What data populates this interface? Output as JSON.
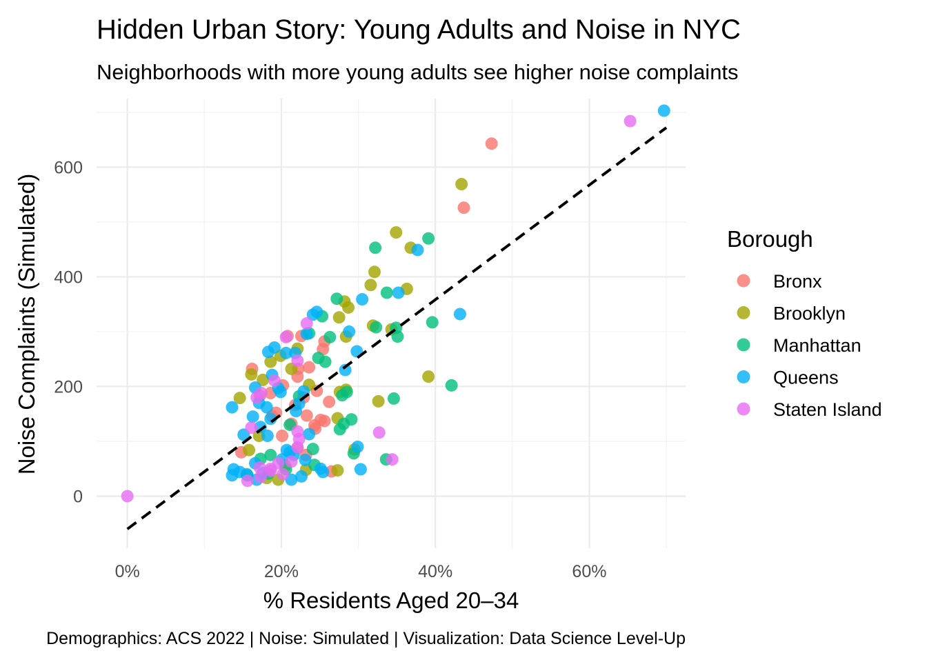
{
  "chart_data": {
    "type": "scatter",
    "title": "Hidden Urban Story: Young Adults and Noise in NYC",
    "subtitle": "Neighborhoods with more young adults see higher noise complaints",
    "xlabel": "% Residents Aged 20–34",
    "ylabel": "Noise Complaints (Simulated)",
    "caption": "Demographics: ACS 2022 | Noise: Simulated | Visualization: Data Science Level-Up",
    "xlim": [
      -0.04,
      0.725
    ],
    "ylim": [
      -95,
      725
    ],
    "x_ticks": [
      {
        "value": 0,
        "label": "0%"
      },
      {
        "value": 0.2,
        "label": "20%"
      },
      {
        "value": 0.4,
        "label": "40%"
      },
      {
        "value": 0.6,
        "label": "60%"
      }
    ],
    "y_ticks": [
      {
        "value": 0,
        "label": "0"
      },
      {
        "value": 200,
        "label": "200"
      },
      {
        "value": 400,
        "label": "400"
      },
      {
        "value": 600,
        "label": "600"
      }
    ],
    "grid": true,
    "legend": {
      "title": "Borough",
      "position": "right"
    },
    "trend_line": {
      "style": "dashed",
      "color": "#000000",
      "x": [
        0,
        0.7
      ],
      "y": [
        -60,
        672
      ]
    },
    "series": [
      {
        "name": "Bronx",
        "color": "#F8766D",
        "points": [
          [
            0.473,
            643
          ],
          [
            0.437,
            526
          ],
          [
            0.162,
            232
          ],
          [
            0.222,
            232
          ],
          [
            0.236,
            235
          ],
          [
            0.246,
            192
          ],
          [
            0.254,
            268
          ],
          [
            0.256,
            282
          ],
          [
            0.262,
            172
          ],
          [
            0.233,
            147
          ],
          [
            0.243,
            129
          ],
          [
            0.251,
            139
          ],
          [
            0.256,
            137
          ],
          [
            0.226,
            292
          ],
          [
            0.208,
            292
          ],
          [
            0.202,
            202
          ],
          [
            0.193,
            152
          ],
          [
            0.188,
            146
          ],
          [
            0.213,
            132
          ],
          [
            0.221,
            218
          ],
          [
            0.218,
            166
          ],
          [
            0.265,
            45
          ],
          [
            0.172,
            183
          ],
          [
            0.201,
            110
          ],
          [
            0.221,
            88
          ],
          [
            0.232,
            75
          ],
          [
            0.148,
            80
          ],
          [
            0.186,
            188
          ],
          [
            0.244,
            123
          ],
          [
            0.229,
            180
          ]
        ]
      },
      {
        "name": "Brooklyn",
        "color": "#A3A500",
        "points": [
          [
            0.434,
            569
          ],
          [
            0.349,
            481
          ],
          [
            0.368,
            453
          ],
          [
            0.363,
            378
          ],
          [
            0.321,
            409
          ],
          [
            0.316,
            385
          ],
          [
            0.282,
            355
          ],
          [
            0.287,
            344
          ],
          [
            0.275,
            326
          ],
          [
            0.284,
            291
          ],
          [
            0.343,
            304
          ],
          [
            0.319,
            311
          ],
          [
            0.391,
            218
          ],
          [
            0.326,
            173
          ],
          [
            0.273,
            142
          ],
          [
            0.276,
            190
          ],
          [
            0.284,
            194
          ],
          [
            0.273,
            47
          ],
          [
            0.295,
            85
          ],
          [
            0.146,
            179
          ],
          [
            0.161,
            222
          ],
          [
            0.176,
            212
          ],
          [
            0.186,
            245
          ],
          [
            0.199,
            256
          ],
          [
            0.213,
            232
          ],
          [
            0.221,
            269
          ],
          [
            0.236,
            203
          ],
          [
            0.158,
            84
          ],
          [
            0.181,
            33
          ],
          [
            0.196,
            30
          ],
          [
            0.205,
            56
          ],
          [
            0.232,
            48
          ],
          [
            0.171,
            110
          ]
        ]
      },
      {
        "name": "Manhattan",
        "color": "#00BF7D",
        "points": [
          [
            0.322,
            453
          ],
          [
            0.391,
            470
          ],
          [
            0.396,
            317
          ],
          [
            0.421,
            202
          ],
          [
            0.351,
            291
          ],
          [
            0.346,
            178
          ],
          [
            0.336,
            67
          ],
          [
            0.337,
            371
          ],
          [
            0.323,
            308
          ],
          [
            0.272,
            360
          ],
          [
            0.253,
            328
          ],
          [
            0.248,
            252
          ],
          [
            0.257,
            245
          ],
          [
            0.263,
            290
          ],
          [
            0.279,
            184
          ],
          [
            0.281,
            132
          ],
          [
            0.276,
            122
          ],
          [
            0.291,
            140
          ],
          [
            0.294,
            78
          ],
          [
            0.241,
            86
          ],
          [
            0.236,
            297
          ],
          [
            0.186,
            75
          ],
          [
            0.173,
            68
          ],
          [
            0.211,
            130
          ],
          [
            0.206,
            49
          ],
          [
            0.156,
            38
          ],
          [
            0.183,
            41
          ],
          [
            0.223,
            182
          ],
          [
            0.285,
            190
          ],
          [
            0.243,
            57
          ],
          [
            0.349,
            307
          ]
        ]
      },
      {
        "name": "Queens",
        "color": "#00B0F6",
        "points": [
          [
            0.697,
            703
          ],
          [
            0.377,
            449
          ],
          [
            0.352,
            371
          ],
          [
            0.432,
            332
          ],
          [
            0.305,
            359
          ],
          [
            0.288,
            300
          ],
          [
            0.298,
            264
          ],
          [
            0.283,
            230
          ],
          [
            0.246,
            336
          ],
          [
            0.241,
            331
          ],
          [
            0.233,
            296
          ],
          [
            0.218,
            261
          ],
          [
            0.206,
            261
          ],
          [
            0.191,
            271
          ],
          [
            0.188,
            221
          ],
          [
            0.183,
            263
          ],
          [
            0.166,
            198
          ],
          [
            0.171,
            170
          ],
          [
            0.163,
            145
          ],
          [
            0.181,
            162
          ],
          [
            0.196,
            197
          ],
          [
            0.199,
            190
          ],
          [
            0.219,
            155
          ],
          [
            0.223,
            169
          ],
          [
            0.229,
            191
          ],
          [
            0.136,
            162
          ],
          [
            0.151,
            112
          ],
          [
            0.173,
            126
          ],
          [
            0.186,
            141
          ],
          [
            0.182,
            110
          ],
          [
            0.166,
            60
          ],
          [
            0.176,
            42
          ],
          [
            0.155,
            40
          ],
          [
            0.146,
            44
          ],
          [
            0.136,
            38
          ],
          [
            0.138,
            49
          ],
          [
            0.168,
            30
          ],
          [
            0.211,
            80
          ],
          [
            0.201,
            67
          ],
          [
            0.216,
            75
          ],
          [
            0.213,
            30
          ],
          [
            0.226,
            36
          ],
          [
            0.231,
            66
          ],
          [
            0.251,
            50
          ],
          [
            0.254,
            44
          ],
          [
            0.299,
            90
          ],
          [
            0.303,
            49
          ],
          [
            0.236,
            113
          ],
          [
            0.207,
            84
          ]
        ]
      },
      {
        "name": "Staten Island",
        "color": "#E76BF3",
        "points": [
          [
            0.653,
            684
          ],
          [
            0.233,
            315
          ],
          [
            0.221,
            247
          ],
          [
            0.206,
            290
          ],
          [
            0.191,
            211
          ],
          [
            0.174,
            188
          ],
          [
            0.168,
            180
          ],
          [
            0.161,
            125
          ],
          [
            0.221,
            118
          ],
          [
            0.223,
            104
          ],
          [
            0.221,
            89
          ],
          [
            0.327,
            116
          ],
          [
            0.344,
            67
          ],
          [
            0.172,
            52
          ],
          [
            0.186,
            50
          ],
          [
            0.196,
            60
          ],
          [
            0.202,
            40
          ],
          [
            0.156,
            28
          ],
          [
            0.186,
            46
          ],
          [
            0.173,
            35
          ],
          [
            0.213,
            63
          ],
          [
            0,
            0
          ]
        ]
      }
    ]
  }
}
